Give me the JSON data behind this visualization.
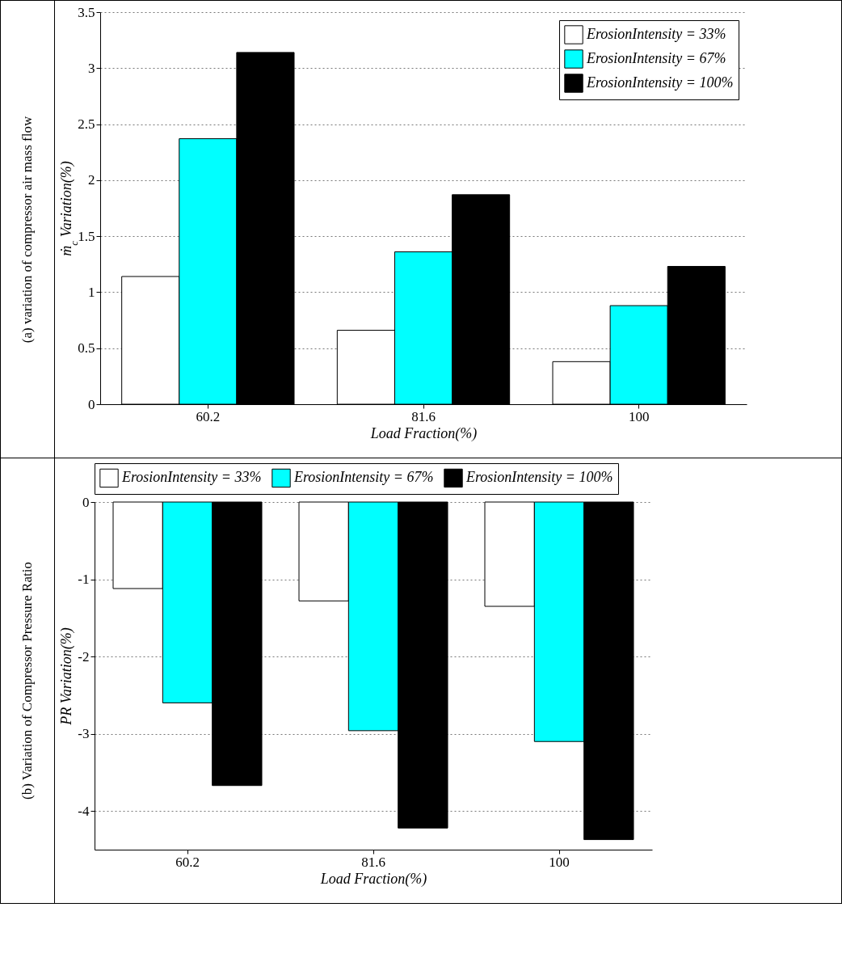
{
  "chart_data": [
    {
      "type": "bar",
      "categories": [
        "60.2",
        "81.6",
        "100"
      ],
      "xlabel": "Load Fraction(%)",
      "ylabel": "ṁ$_{c}$ Variation(%)",
      "ylim": [
        0,
        3.5
      ],
      "yticks": [
        0,
        0.5,
        1,
        1.5,
        2,
        2.5,
        3,
        3.5
      ],
      "grid": "y",
      "legend": "top right",
      "annotations": [
        "(a) variation of compressor air mass flow"
      ],
      "series": [
        {
          "name": "ErosionIntensity = 33%",
          "color": "#ffffff",
          "values": [
            1.14,
            0.66,
            0.38
          ]
        },
        {
          "name": "ErosionIntensity = 67%",
          "color": "#00ffff",
          "values": [
            2.37,
            1.36,
            0.88
          ]
        },
        {
          "name": "ErosionIntensity = 100%",
          "color": "#000000",
          "values": [
            3.14,
            1.87,
            1.23
          ]
        }
      ]
    },
    {
      "type": "bar",
      "categories": [
        "60.2",
        "81.6",
        "100"
      ],
      "xlabel": "Load Fraction(%)",
      "ylabel": "PR Variation(%)",
      "ylim": [
        -4.5,
        0
      ],
      "yticks": [
        -4,
        -3,
        -2,
        -1,
        0
      ],
      "grid": "y",
      "legend": "top",
      "annotations": [
        "(b) Variation of Compressor Pressure Ratio"
      ],
      "series": [
        {
          "name": "ErosionIntensity = 33%",
          "color": "#ffffff",
          "values": [
            -1.12,
            -1.28,
            -1.35
          ]
        },
        {
          "name": "ErosionIntensity = 67%",
          "color": "#00ffff",
          "values": [
            -2.6,
            -2.96,
            -3.1
          ]
        },
        {
          "name": "ErosionIntensity = 100%",
          "color": "#000000",
          "values": [
            -3.67,
            -4.22,
            -4.37
          ]
        }
      ]
    }
  ]
}
